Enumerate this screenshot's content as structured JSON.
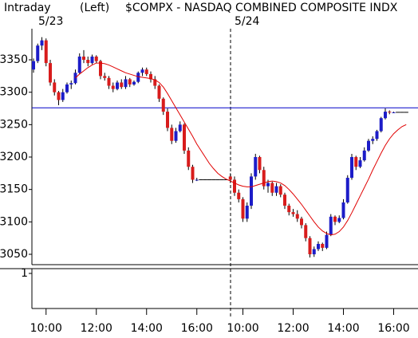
{
  "chart_data": {
    "type": "candlestick",
    "interval": "Intraday",
    "scale_side": "(Left)",
    "title": "$COMPX - NASDAQ COMBINED COMPOSITE INDX",
    "sessions": [
      "5/23",
      "5/24"
    ],
    "categories": [
      null,
      null,
      null,
      "10:00",
      null,
      null,
      null,
      null,
      null,
      null,
      null,
      null,
      null,
      null,
      null,
      "12:00",
      null,
      null,
      null,
      null,
      null,
      null,
      null,
      null,
      null,
      null,
      null,
      "14:00",
      null,
      null,
      null,
      null,
      null,
      null,
      null,
      null,
      null,
      null,
      null,
      "16:00",
      null,
      null,
      null,
      null,
      null,
      null,
      null,
      null,
      null,
      null,
      "10:00",
      null,
      null,
      null,
      null,
      null,
      null,
      null,
      null,
      null,
      null,
      null,
      "12:00",
      null,
      null,
      null,
      null,
      null,
      null,
      null,
      null,
      null,
      null,
      null,
      "14:00",
      null,
      null,
      null,
      null,
      null,
      null,
      null,
      null,
      null,
      null,
      null,
      "16:00",
      null,
      null,
      null,
      null
    ],
    "open": [
      3335,
      3348,
      3372,
      3380,
      3345,
      3315,
      3300,
      3288,
      3300,
      3312,
      3314,
      3330,
      3355,
      3350,
      3345,
      3355,
      3348,
      3325,
      3322,
      3310,
      3305,
      3315,
      3308,
      3320,
      3312,
      3316,
      3330,
      3335,
      3328,
      3320,
      3310,
      3290,
      3270,
      3245,
      3225,
      3240,
      3250,
      3210,
      3185,
      3165,
      3165,
      3165,
      3165,
      3165,
      3165,
      3165,
      3165,
      3170,
      3165,
      3145,
      3135,
      3105,
      3125,
      3170,
      3200,
      3180,
      3155,
      3160,
      3145,
      3155,
      3142,
      3125,
      3115,
      3112,
      3105,
      3095,
      3075,
      3050,
      3058,
      3066,
      3060,
      3080,
      3108,
      3100,
      3106,
      3130,
      3168,
      3200,
      3185,
      3195,
      3210,
      3225,
      3228,
      3240,
      3260,
      3270,
      3269,
      3269,
      3269,
      3269,
      null
    ],
    "high": [
      3352,
      3375,
      3385,
      3383,
      3350,
      3320,
      3302,
      3305,
      3315,
      3318,
      3335,
      3360,
      3365,
      3355,
      3358,
      3357,
      3350,
      3330,
      3325,
      3315,
      3318,
      3320,
      3325,
      3322,
      3318,
      3332,
      3338,
      3338,
      3332,
      3325,
      3312,
      3292,
      3275,
      3250,
      3245,
      3255,
      3252,
      3215,
      3188,
      3168,
      3165,
      3165,
      3165,
      3165,
      3165,
      3165,
      3165,
      3175,
      3170,
      3150,
      3138,
      3130,
      3175,
      3205,
      3202,
      3185,
      3165,
      3162,
      3160,
      3158,
      3145,
      3128,
      3120,
      3118,
      3108,
      3098,
      3078,
      3062,
      3070,
      3068,
      3085,
      3112,
      3110,
      3110,
      3135,
      3172,
      3205,
      3202,
      3200,
      3215,
      3228,
      3232,
      3242,
      3262,
      3275,
      3272,
      3270,
      3269,
      3269,
      3269,
      null
    ],
    "low": [
      3330,
      3345,
      3365,
      3340,
      3310,
      3295,
      3280,
      3285,
      3298,
      3305,
      3312,
      3328,
      3345,
      3340,
      3343,
      3345,
      3320,
      3318,
      3305,
      3300,
      3303,
      3305,
      3305,
      3308,
      3310,
      3314,
      3325,
      3325,
      3315,
      3305,
      3285,
      3265,
      3240,
      3220,
      3222,
      3238,
      3205,
      3180,
      3160,
      3163,
      3165,
      3165,
      3165,
      3165,
      3165,
      3165,
      3165,
      3160,
      3140,
      3130,
      3100,
      3100,
      3120,
      3165,
      3175,
      3150,
      3145,
      3140,
      3140,
      3138,
      3120,
      3110,
      3108,
      3100,
      3090,
      3070,
      3045,
      3046,
      3055,
      3055,
      3058,
      3078,
      3095,
      3098,
      3104,
      3128,
      3165,
      3180,
      3183,
      3193,
      3208,
      3220,
      3225,
      3238,
      3258,
      3266,
      3268,
      3269,
      3269,
      3269,
      null
    ],
    "close": [
      3348,
      3372,
      3380,
      3345,
      3315,
      3300,
      3288,
      3300,
      3312,
      3314,
      3330,
      3355,
      3350,
      3345,
      3355,
      3348,
      3325,
      3322,
      3310,
      3305,
      3315,
      3308,
      3320,
      3312,
      3316,
      3330,
      3335,
      3328,
      3320,
      3310,
      3290,
      3270,
      3245,
      3225,
      3240,
      3250,
      3210,
      3185,
      3165,
      3165,
      3165,
      3165,
      3165,
      3165,
      3165,
      3165,
      3165,
      3165,
      3145,
      3135,
      3105,
      3125,
      3170,
      3200,
      3180,
      3155,
      3160,
      3145,
      3155,
      3142,
      3125,
      3115,
      3112,
      3105,
      3095,
      3075,
      3050,
      3058,
      3066,
      3060,
      3080,
      3108,
      3100,
      3106,
      3130,
      3168,
      3200,
      3185,
      3195,
      3210,
      3225,
      3228,
      3240,
      3260,
      3270,
      3269,
      3269,
      3269,
      3269,
      3269,
      null
    ],
    "up_color": "#1c1cc8",
    "down_color": "#d81c1c",
    "moving_average": {
      "color": "#e00000",
      "values": [
        null,
        null,
        null,
        null,
        null,
        null,
        null,
        null,
        null,
        null,
        3322,
        3328,
        3333,
        3338,
        3342,
        3345,
        3345,
        3344,
        3342,
        3339,
        3336,
        3333,
        3330,
        3328,
        3326,
        3324,
        3323,
        3322,
        3321,
        3319,
        3315,
        3308,
        3298,
        3287,
        3276,
        3265,
        3254,
        3243,
        3232,
        3220,
        3210,
        3200,
        3190,
        3182,
        3175,
        3170,
        3166,
        3163,
        3160,
        3157,
        3155,
        3154,
        3154,
        3156,
        3158,
        3160,
        3162,
        3163,
        3162,
        3160,
        3156,
        3150,
        3143,
        3135,
        3127,
        3118,
        3109,
        3100,
        3092,
        3086,
        3082,
        3080,
        3081,
        3085,
        3092,
        3102,
        3114,
        3127,
        3140,
        3153,
        3166,
        3180,
        3193,
        3206,
        3218,
        3228,
        3236,
        3242,
        3247,
        3250,
        null
      ]
    },
    "reference_line": {
      "value": 3276,
      "color": "#0000c8"
    },
    "ylim": [
      3034,
      3398
    ],
    "yticks": [
      3050,
      3100,
      3150,
      3200,
      3250,
      3300,
      3350
    ],
    "lower_panel": {
      "ylim": [
        0,
        1
      ],
      "yticks": [
        1
      ]
    }
  }
}
